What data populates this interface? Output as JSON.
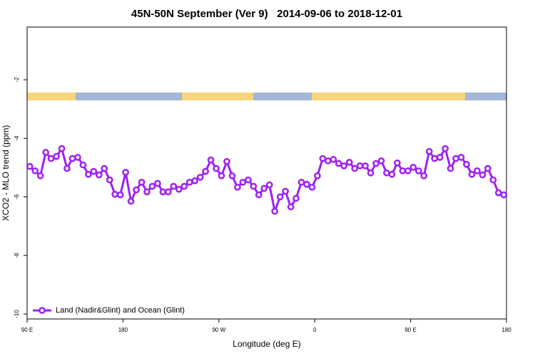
{
  "chart_data": {
    "type": "line",
    "title": "45N-50N September (Ver 9)   2014-09-06 to 2018-12-01",
    "x_label": "Longitude (deg E)",
    "y_label": "XCO2 - MLO trend (ppm)",
    "xlim": [
      90,
      540
    ],
    "ylim": [
      -10.17,
      -0.2
    ],
    "xticks": [
      {
        "value": 90,
        "label": "90 E"
      },
      180,
      {
        "value": 270,
        "label": "90 W"
      },
      {
        "value": 360,
        "label": "0"
      },
      {
        "value": 450,
        "label": "90 E"
      },
      {
        "value": 540,
        "label": "180"
      }
    ],
    "yticks": [
      -2,
      -4,
      -6,
      -8,
      -10
    ],
    "legend": "bottom-left",
    "x": [
      92.5,
      97.5,
      102.5,
      107.5,
      112.5,
      117.5,
      122.5,
      127.5,
      132.5,
      137.5,
      142.5,
      147.5,
      152.5,
      157.5,
      162.5,
      167.5,
      172.5,
      177.5,
      182.5,
      187.5,
      192.5,
      197.5,
      202.5,
      207.5,
      212.5,
      217.5,
      222.5,
      227.5,
      232.5,
      237.5,
      242.5,
      247.5,
      252.5,
      257.5,
      262.5,
      267.5,
      272.5,
      277.5,
      282.5,
      287.5,
      292.5,
      297.5,
      302.5,
      307.5,
      312.5,
      317.5,
      322.5,
      327.5,
      332.5,
      337.5,
      342.5,
      347.5,
      352.5,
      357.5,
      362.5,
      367.5,
      372.5,
      377.5,
      382.5,
      387.5,
      392.5,
      397.5,
      402.5,
      407.5,
      412.5,
      417.5,
      422.5,
      427.5,
      432.5,
      437.5,
      442.5,
      447.5,
      452.5,
      457.5,
      462.5,
      467.5,
      472.5,
      477.5,
      482.5,
      487.5,
      492.5,
      497.5,
      502.5,
      507.5,
      512.5,
      517.5,
      522.5,
      527.5,
      532.5,
      537.5
    ],
    "series": [
      {
        "name": "Land (Nadir&Glint) and Ocean (Glint)",
        "color": "#a020f0",
        "values": [
          -4.96,
          -5.11,
          -5.28,
          -4.48,
          -4.69,
          -4.62,
          -4.35,
          -5.03,
          -4.69,
          -4.65,
          -4.91,
          -5.23,
          -5.13,
          -5.25,
          -5.03,
          -5.42,
          -5.91,
          -5.93,
          -5.16,
          -6.15,
          -5.76,
          -5.5,
          -5.83,
          -5.64,
          -5.54,
          -5.83,
          -5.83,
          -5.64,
          -5.74,
          -5.64,
          -5.5,
          -5.45,
          -5.33,
          -5.13,
          -4.74,
          -5.03,
          -5.28,
          -4.79,
          -5.28,
          -5.67,
          -5.5,
          -5.42,
          -5.64,
          -5.93,
          -5.71,
          -5.59,
          -6.49,
          -6.0,
          -5.81,
          -6.34,
          -6.05,
          -5.5,
          -5.57,
          -5.67,
          -5.28,
          -4.69,
          -4.77,
          -4.72,
          -4.86,
          -4.94,
          -4.82,
          -5.03,
          -4.94,
          -4.94,
          -5.18,
          -4.86,
          -4.77,
          -5.18,
          -5.23,
          -4.84,
          -5.11,
          -5.11,
          -4.99,
          -5.11,
          -5.28,
          -4.45,
          -4.69,
          -4.65,
          -4.35,
          -5.03,
          -4.69,
          -4.65,
          -4.89,
          -5.23,
          -5.11,
          -5.25,
          -5.03,
          -5.42,
          -5.86,
          -5.93
        ]
      }
    ]
  }
}
